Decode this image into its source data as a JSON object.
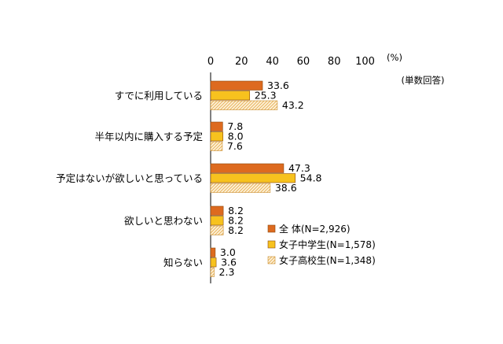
{
  "chart_data": {
    "type": "bar",
    "orientation": "horizontal",
    "unit_label": "(%)",
    "note": "(単数回答)",
    "xlim": [
      0,
      100
    ],
    "xticks": [
      0,
      20,
      40,
      60,
      80,
      100
    ],
    "categories": [
      "すでに利用している",
      "半年以内に購入する予定",
      "予定はないが欲しいと思っている",
      "欲しいと思わない",
      "知らない"
    ],
    "series": [
      {
        "name": "全 体(N=2,926)",
        "color": "#dd6a1f",
        "pattern": "solid",
        "values": [
          33.6,
          7.8,
          47.3,
          8.2,
          3.0
        ],
        "labels": [
          "33.6",
          "7.8",
          "47.3",
          "8.2",
          "3.0"
        ]
      },
      {
        "name": "女子中学生(N=1,578)",
        "color": "#f7c21e",
        "pattern": "solid",
        "values": [
          25.3,
          8.0,
          54.8,
          8.2,
          3.6
        ],
        "labels": [
          "25.3",
          "8.0",
          "54.8",
          "8.2",
          "3.6"
        ]
      },
      {
        "name": "女子高校生(N=1,348)",
        "color": "#e9b25a",
        "pattern": "hatched",
        "values": [
          43.2,
          7.6,
          38.6,
          8.2,
          2.3
        ],
        "labels": [
          "43.2",
          "7.6",
          "38.6",
          "8.2",
          "2.3"
        ]
      }
    ],
    "legend_position": "lower-right",
    "grid": false
  }
}
